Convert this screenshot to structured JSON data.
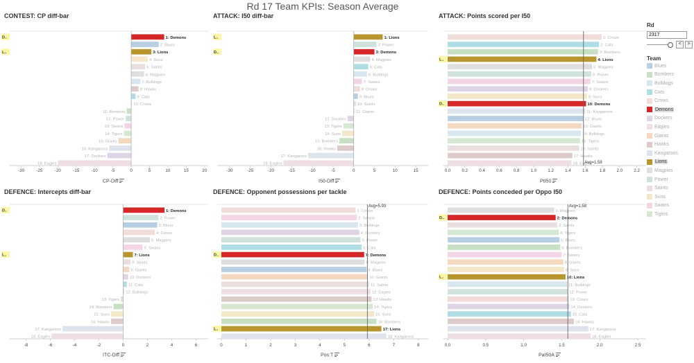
{
  "page_title": "Rd 17 Team KPIs: Season Average",
  "colors": {
    "Demons": "#d62728",
    "Lions": "#b8962e",
    "Blues": "#b8cfe3",
    "Bombers": "#c7dfc2",
    "Bulldogs": "#d8e7ef",
    "Cats": "#b0dde4",
    "Crows": "#f0dcd8",
    "Dockers": "#dfd3e6",
    "Eagles": "#efdfe2",
    "Giants": "#f5d8c0",
    "Hawks": "#dccbc8",
    "Kangaroos": "#dee4ee",
    "Magpies": "#dfdfdf",
    "Power": "#cfe2dc",
    "Saints": "#ebdede",
    "Suns": "#f4e6c8",
    "Swans": "#f3d6e6",
    "Tigers": "#d6e8d2"
  },
  "chart_data": [
    {
      "type": "bar",
      "orientation": "horizontal",
      "title": "CONTEST: CP diff-bar",
      "xlabel": "CP-Diff",
      "xlim": [
        -32,
        21
      ],
      "xticks": [
        -30,
        -25,
        -20,
        -15,
        -10,
        -5,
        0,
        5,
        10,
        15,
        20
      ],
      "highlight_badges": [
        "D..",
        "L.."
      ],
      "categories": [
        "1: Demons",
        "2: Blues",
        "3: Lions",
        "4: Suns",
        "5: Saints",
        "6: Magpies",
        "7: Bulldogs",
        "8: Hawks",
        "9: Cats",
        "10: Crows",
        "11: Bombers",
        "12: Power",
        "13: Swans",
        "14: Tigers",
        "15: Giants",
        "16: Kangaroos",
        "17: Dockers",
        "18: Eagles"
      ],
      "values": [
        9.0,
        7.5,
        5.5,
        4.5,
        3.8,
        3.5,
        2.5,
        2.0,
        1.2,
        0.2,
        -1.2,
        -1.5,
        -1.8,
        -2.0,
        -3.5,
        -6.0,
        -6.5,
        -20.0
      ]
    },
    {
      "type": "bar",
      "orientation": "horizontal",
      "title": "ATTACK: I50 diff-bar",
      "xlabel": "I50-Diff",
      "xlim": [
        -32,
        18
      ],
      "xticks": [
        -30,
        -25,
        -20,
        -15,
        -10,
        -5,
        0,
        5,
        10,
        15
      ],
      "highlight_badges": [
        "L..",
        "D.."
      ],
      "categories": [
        "1: Lions",
        "2: Power",
        "3: Demons",
        "4: Magpies",
        "5: Cats",
        "6: Bulldogs",
        "7: Swans",
        "8: Crows",
        "9: Blues",
        "10: Saints",
        "11: Giants",
        "12: Dockers",
        "13: Tigers",
        "14: Suns",
        "15: Bombers",
        "16: Hawks",
        "17: Kangaroos",
        "18: Eagles"
      ],
      "values": [
        7.0,
        5.5,
        5.0,
        4.0,
        3.5,
        3.2,
        2.0,
        1.5,
        1.0,
        0.5,
        0.2,
        -1.5,
        -2.5,
        -2.8,
        -3.5,
        -4.0,
        -11.0,
        -17.0
      ]
    },
    {
      "type": "bar",
      "orientation": "horizontal",
      "title": "ATTACK: Points scored per I50",
      "xlabel": "PtI50",
      "xlim": [
        0,
        2.3
      ],
      "xticks": [
        0.0,
        0.2,
        0.4,
        0.6,
        0.8,
        1.0,
        1.2,
        1.4,
        1.6,
        1.8,
        2.0,
        2.2
      ],
      "reference_line": {
        "value": 1.58,
        "label": "Avg=1.58"
      },
      "highlight_badges": [
        "L..",
        "D.."
      ],
      "categories": [
        "1: Crows",
        "2: Cats",
        "3: Bombers",
        "4: Lions",
        "5: Magpies",
        "6: Power",
        "7: Swans",
        "8: Dockers",
        "9: Suns",
        "10: Demons",
        "11: Kangaroos",
        "12: Blues",
        "13: Giants",
        "14: Bulldogs",
        "15: Tigers",
        "16: Saints",
        "17: Hawks",
        "18: Eagles"
      ],
      "values": [
        1.79,
        1.76,
        1.75,
        1.73,
        1.68,
        1.67,
        1.66,
        1.63,
        1.62,
        1.61,
        1.6,
        1.58,
        1.56,
        1.55,
        1.54,
        1.53,
        1.45,
        1.44
      ]
    },
    {
      "type": "bar",
      "orientation": "horizontal",
      "title": "DEFENCE: Intercepts diff-bar",
      "xlabel": "ITC-Diff",
      "xlim": [
        -9,
        7
      ],
      "xticks": [
        -8,
        -6,
        -4,
        -2,
        0,
        2,
        4,
        6
      ],
      "highlight_badges": [
        "D..",
        "L.."
      ],
      "categories": [
        "1: Demons",
        "2: Power",
        "3: Blues",
        "4: Crows",
        "5: Magpies",
        "6: Swans",
        "7: Lions",
        "8: Saints",
        "9: Giants",
        "10: Dockers",
        "11: Cats",
        "12: Bulldogs",
        "13: Tigers",
        "14: Bombers",
        "15: Suns",
        "16: Hawks",
        "17: Kangaroos",
        "18: Eagles"
      ],
      "values": [
        3.4,
        2.9,
        2.8,
        2.6,
        2.2,
        1.6,
        0.8,
        0.6,
        0.5,
        0.4,
        0.3,
        0.1,
        -0.2,
        -0.8,
        -1.0,
        -1.0,
        -5.0,
        -5.9
      ]
    },
    {
      "type": "bar",
      "orientation": "horizontal",
      "title": "DEFENCE: Opponent possessions per tackle",
      "xlabel": "Pos:T",
      "xlim": [
        0,
        8.4
      ],
      "xticks": [
        0,
        1,
        2,
        3,
        4,
        5,
        6,
        7,
        8
      ],
      "reference_line": {
        "value": 5.93,
        "label": "Avg=5.93"
      },
      "highlight_badges": [
        "D..",
        "L.."
      ],
      "categories": [
        "1: Crows",
        "2: Swans",
        "3: Bulldogs",
        "4: Dockers",
        "5: Power",
        "6: Cats",
        "7: Demons",
        "8: Magpies",
        "9: Blues",
        "10: Giants",
        "11: Saints",
        "12: Eagles",
        "13: Hawks",
        "14: Tigers",
        "15: Suns",
        "16: Bombers",
        "17: Lions",
        "18: Kangaroos"
      ],
      "values": [
        5.45,
        5.5,
        5.55,
        5.6,
        5.65,
        5.7,
        5.8,
        5.82,
        5.9,
        5.95,
        6.0,
        6.05,
        6.1,
        6.15,
        6.2,
        6.3,
        6.5,
        6.7
      ]
    },
    {
      "type": "bar",
      "orientation": "horizontal",
      "title": "DEFENCE: Points conceded per Oppo I50",
      "xlabel": "PaI50A",
      "xlim": [
        0,
        2.6
      ],
      "xticks": [
        0.0,
        0.5,
        1.0,
        1.5,
        2.0,
        2.5
      ],
      "reference_line": {
        "value": 1.58,
        "label": "Avg=1.58"
      },
      "highlight_badges": [
        "D..",
        "L.."
      ],
      "categories": [
        "1: Magpies",
        "2: Demons",
        "3: Saints",
        "4: Tigers",
        "5: Blues",
        "6: Bombers",
        "7: Swans",
        "8: Giants",
        "9: Suns",
        "10: Lions",
        "11: Bulldogs",
        "12: Power",
        "13: Crows",
        "14: Dockers",
        "15: Cats",
        "16: Hawks",
        "17: Kangaroos",
        "18: Eagles"
      ],
      "values": [
        1.4,
        1.42,
        1.44,
        1.46,
        1.47,
        1.48,
        1.5,
        1.52,
        1.53,
        1.55,
        1.57,
        1.58,
        1.59,
        1.6,
        1.62,
        1.66,
        1.85,
        1.88
      ]
    }
  ],
  "sidebar": {
    "rd_title": "Rd",
    "rd_value": "2317",
    "prev_label": "<",
    "next_label": ">",
    "team_title": "Team",
    "teams": [
      "Blues",
      "Bombers",
      "Bulldogs",
      "Cats",
      "Crows",
      "Demons",
      "Dockers",
      "Eagles",
      "Giants",
      "Hawks",
      "Kangaroos",
      "Lions",
      "Magpies",
      "Power",
      "Saints",
      "Suns",
      "Swans",
      "Tigers"
    ],
    "highlighted": [
      "Demons",
      "Lions"
    ]
  }
}
